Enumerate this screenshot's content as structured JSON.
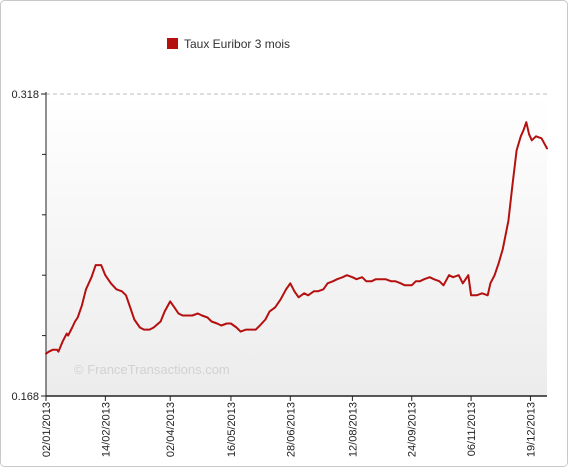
{
  "colors": {
    "series": "#b51010",
    "frame": "#c9c9c9",
    "axis": "#222222",
    "grid": "#bdbdbd",
    "plot_top": "#ffffff",
    "plot_bottom": "#ececec",
    "watermark": "#d2d2d2"
  },
  "watermark": "© FranceTransactions.com",
  "chart_data": {
    "type": "line",
    "legend_position": "top-center",
    "grid": "top dashed line only",
    "ylim": [
      0.168,
      0.318
    ],
    "y_tick_labels": [
      "0.318",
      "0.168"
    ],
    "y_minor_ticks": [
      0.198,
      0.228,
      0.258,
      0.288
    ],
    "xlim": [
      "2013-01-02",
      "2013-12-31"
    ],
    "x_tick_labels": [
      "02/01/2013",
      "14/02/2013",
      "02/04/2013",
      "16/05/2013",
      "28/06/2013",
      "12/08/2013",
      "24/09/2013",
      "06/11/2013",
      "19/12/2013"
    ],
    "x_tick_dates": [
      "2013-01-02",
      "2013-02-14",
      "2013-04-02",
      "2013-05-16",
      "2013-06-28",
      "2013-08-12",
      "2013-09-24",
      "2013-11-06",
      "2013-12-19"
    ],
    "series": [
      {
        "name": "Taux Euribor 3 mois",
        "points": [
          [
            "2013-01-02",
            0.189
          ],
          [
            "2013-01-04",
            0.19
          ],
          [
            "2013-01-07",
            0.191
          ],
          [
            "2013-01-10",
            0.191
          ],
          [
            "2013-01-11",
            0.19
          ],
          [
            "2013-01-14",
            0.195
          ],
          [
            "2013-01-17",
            0.199
          ],
          [
            "2013-01-18",
            0.198
          ],
          [
            "2013-01-21",
            0.202
          ],
          [
            "2013-01-23",
            0.205
          ],
          [
            "2013-01-25",
            0.207
          ],
          [
            "2013-01-28",
            0.213
          ],
          [
            "2013-01-31",
            0.221
          ],
          [
            "2013-02-04",
            0.227
          ],
          [
            "2013-02-07",
            0.233
          ],
          [
            "2013-02-11",
            0.233
          ],
          [
            "2013-02-14",
            0.228
          ],
          [
            "2013-02-18",
            0.224
          ],
          [
            "2013-02-22",
            0.221
          ],
          [
            "2013-02-26",
            0.22
          ],
          [
            "2013-03-01",
            0.218
          ],
          [
            "2013-03-04",
            0.212
          ],
          [
            "2013-03-07",
            0.206
          ],
          [
            "2013-03-11",
            0.202
          ],
          [
            "2013-03-14",
            0.201
          ],
          [
            "2013-03-18",
            0.201
          ],
          [
            "2013-03-21",
            0.202
          ],
          [
            "2013-03-26",
            0.205
          ],
          [
            "2013-03-29",
            0.21
          ],
          [
            "2013-04-02",
            0.215
          ],
          [
            "2013-04-05",
            0.212
          ],
          [
            "2013-04-08",
            0.209
          ],
          [
            "2013-04-11",
            0.208
          ],
          [
            "2013-04-15",
            0.208
          ],
          [
            "2013-04-18",
            0.208
          ],
          [
            "2013-04-22",
            0.209
          ],
          [
            "2013-04-25",
            0.208
          ],
          [
            "2013-04-29",
            0.207
          ],
          [
            "2013-05-02",
            0.205
          ],
          [
            "2013-05-06",
            0.204
          ],
          [
            "2013-05-09",
            0.203
          ],
          [
            "2013-05-13",
            0.204
          ],
          [
            "2013-05-16",
            0.204
          ],
          [
            "2013-05-20",
            0.202
          ],
          [
            "2013-05-23",
            0.2
          ],
          [
            "2013-05-27",
            0.201
          ],
          [
            "2013-05-30",
            0.201
          ],
          [
            "2013-06-03",
            0.201
          ],
          [
            "2013-06-06",
            0.203
          ],
          [
            "2013-06-10",
            0.206
          ],
          [
            "2013-06-13",
            0.21
          ],
          [
            "2013-06-17",
            0.212
          ],
          [
            "2013-06-21",
            0.216
          ],
          [
            "2013-06-25",
            0.221
          ],
          [
            "2013-06-28",
            0.224
          ],
          [
            "2013-07-01",
            0.22
          ],
          [
            "2013-07-04",
            0.217
          ],
          [
            "2013-07-08",
            0.219
          ],
          [
            "2013-07-11",
            0.218
          ],
          [
            "2013-07-15",
            0.22
          ],
          [
            "2013-07-18",
            0.22
          ],
          [
            "2013-07-22",
            0.221
          ],
          [
            "2013-07-25",
            0.224
          ],
          [
            "2013-07-29",
            0.225
          ],
          [
            "2013-08-01",
            0.226
          ],
          [
            "2013-08-05",
            0.227
          ],
          [
            "2013-08-08",
            0.228
          ],
          [
            "2013-08-12",
            0.227
          ],
          [
            "2013-08-15",
            0.226
          ],
          [
            "2013-08-19",
            0.227
          ],
          [
            "2013-08-22",
            0.225
          ],
          [
            "2013-08-26",
            0.225
          ],
          [
            "2013-08-29",
            0.226
          ],
          [
            "2013-09-02",
            0.226
          ],
          [
            "2013-09-05",
            0.226
          ],
          [
            "2013-09-09",
            0.225
          ],
          [
            "2013-09-12",
            0.225
          ],
          [
            "2013-09-16",
            0.224
          ],
          [
            "2013-09-19",
            0.223
          ],
          [
            "2013-09-24",
            0.223
          ],
          [
            "2013-09-27",
            0.225
          ],
          [
            "2013-09-30",
            0.225
          ],
          [
            "2013-10-03",
            0.226
          ],
          [
            "2013-10-07",
            0.227
          ],
          [
            "2013-10-10",
            0.226
          ],
          [
            "2013-10-14",
            0.225
          ],
          [
            "2013-10-17",
            0.223
          ],
          [
            "2013-10-21",
            0.228
          ],
          [
            "2013-10-24",
            0.227
          ],
          [
            "2013-10-28",
            0.228
          ],
          [
            "2013-10-31",
            0.224
          ],
          [
            "2013-11-04",
            0.228
          ],
          [
            "2013-11-06",
            0.218
          ],
          [
            "2013-11-10",
            0.218
          ],
          [
            "2013-11-14",
            0.219
          ],
          [
            "2013-11-18",
            0.218
          ],
          [
            "2013-11-20",
            0.224
          ],
          [
            "2013-11-23",
            0.228
          ],
          [
            "2013-11-26",
            0.234
          ],
          [
            "2013-11-29",
            0.241
          ],
          [
            "2013-12-03",
            0.255
          ],
          [
            "2013-12-06",
            0.273
          ],
          [
            "2013-12-09",
            0.29
          ],
          [
            "2013-12-12",
            0.297
          ],
          [
            "2013-12-14",
            0.3
          ],
          [
            "2013-12-16",
            0.304
          ],
          [
            "2013-12-18",
            0.298
          ],
          [
            "2013-12-20",
            0.295
          ],
          [
            "2013-12-23",
            0.297
          ],
          [
            "2013-12-27",
            0.296
          ],
          [
            "2013-12-31",
            0.291
          ]
        ]
      }
    ]
  }
}
